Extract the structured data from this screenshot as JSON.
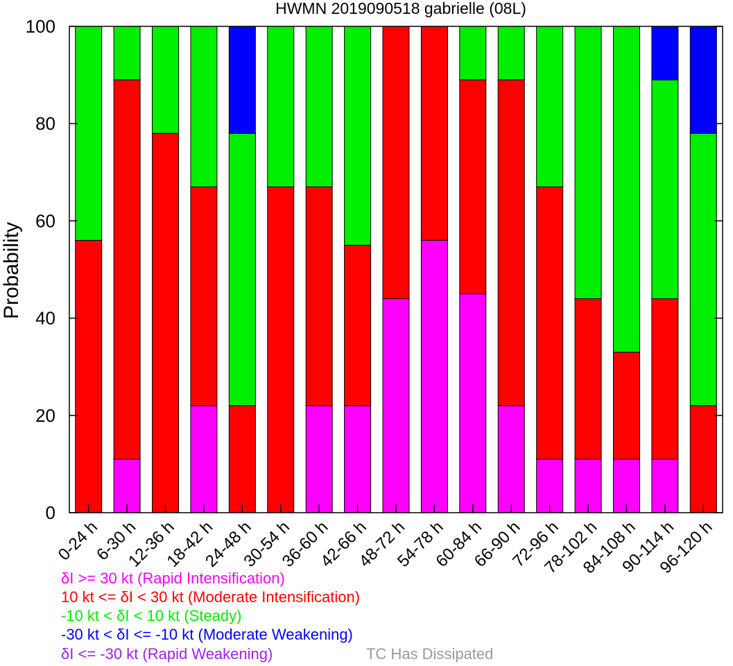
{
  "chart_data": {
    "type": "bar",
    "stacked": true,
    "title": "HWMN 2019090518 gabrielle (08L)",
    "xlabel": "",
    "ylabel": "Probability",
    "ylim": [
      0,
      100
    ],
    "yticks": [
      0,
      20,
      40,
      60,
      80,
      100
    ],
    "categories": [
      "0-24 h",
      "6-30 h",
      "12-36 h",
      "18-42 h",
      "24-48 h",
      "30-54 h",
      "36-60 h",
      "42-66 h",
      "48-72 h",
      "54-78 h",
      "60-84 h",
      "66-90 h",
      "72-96 h",
      "78-102 h",
      "84-108 h",
      "90-114 h",
      "96-120 h"
    ],
    "series": [
      {
        "key": "ri",
        "color": "#ff00ff",
        "values": [
          0,
          11,
          0,
          22,
          0,
          0,
          22,
          22,
          44,
          56,
          45,
          22,
          11,
          11,
          11,
          11,
          0
        ]
      },
      {
        "key": "mi",
        "color": "#ff0000",
        "values": [
          56,
          78,
          78,
          45,
          22,
          67,
          45,
          33,
          56,
          44,
          44,
          67,
          56,
          33,
          22,
          33,
          22
        ]
      },
      {
        "key": "st",
        "color": "#00ee00",
        "values": [
          44,
          11,
          22,
          33,
          56,
          33,
          33,
          45,
          0,
          0,
          11,
          11,
          33,
          56,
          67,
          45,
          56
        ]
      },
      {
        "key": "mw",
        "color": "#0000ff",
        "values": [
          0,
          0,
          0,
          0,
          22,
          0,
          0,
          0,
          0,
          0,
          0,
          0,
          0,
          0,
          0,
          11,
          22
        ]
      },
      {
        "key": "rw",
        "color": "#a020f0",
        "values": [
          0,
          0,
          0,
          0,
          0,
          0,
          0,
          0,
          0,
          0,
          0,
          0,
          0,
          0,
          0,
          0,
          0
        ]
      }
    ],
    "grid": false
  },
  "legend": {
    "items": [
      {
        "text": "δI >= 30 kt (Rapid Intensification)",
        "color": "#ff00ff"
      },
      {
        "text": "10 kt <= δI < 30 kt (Moderate Intensification)",
        "color": "#ff0000"
      },
      {
        "text": "-10 kt < δI < 10 kt (Steady)",
        "color": "#00ee00"
      },
      {
        "text": "-30 kt < δI <= -10 kt (Moderate Weakening)",
        "color": "#0000ff"
      },
      {
        "text": "δI <= -30 kt (Rapid Weakening)",
        "color": "#a020f0"
      }
    ],
    "dissipated": {
      "text": "TC Has Dissipated",
      "color": "#999999"
    }
  }
}
